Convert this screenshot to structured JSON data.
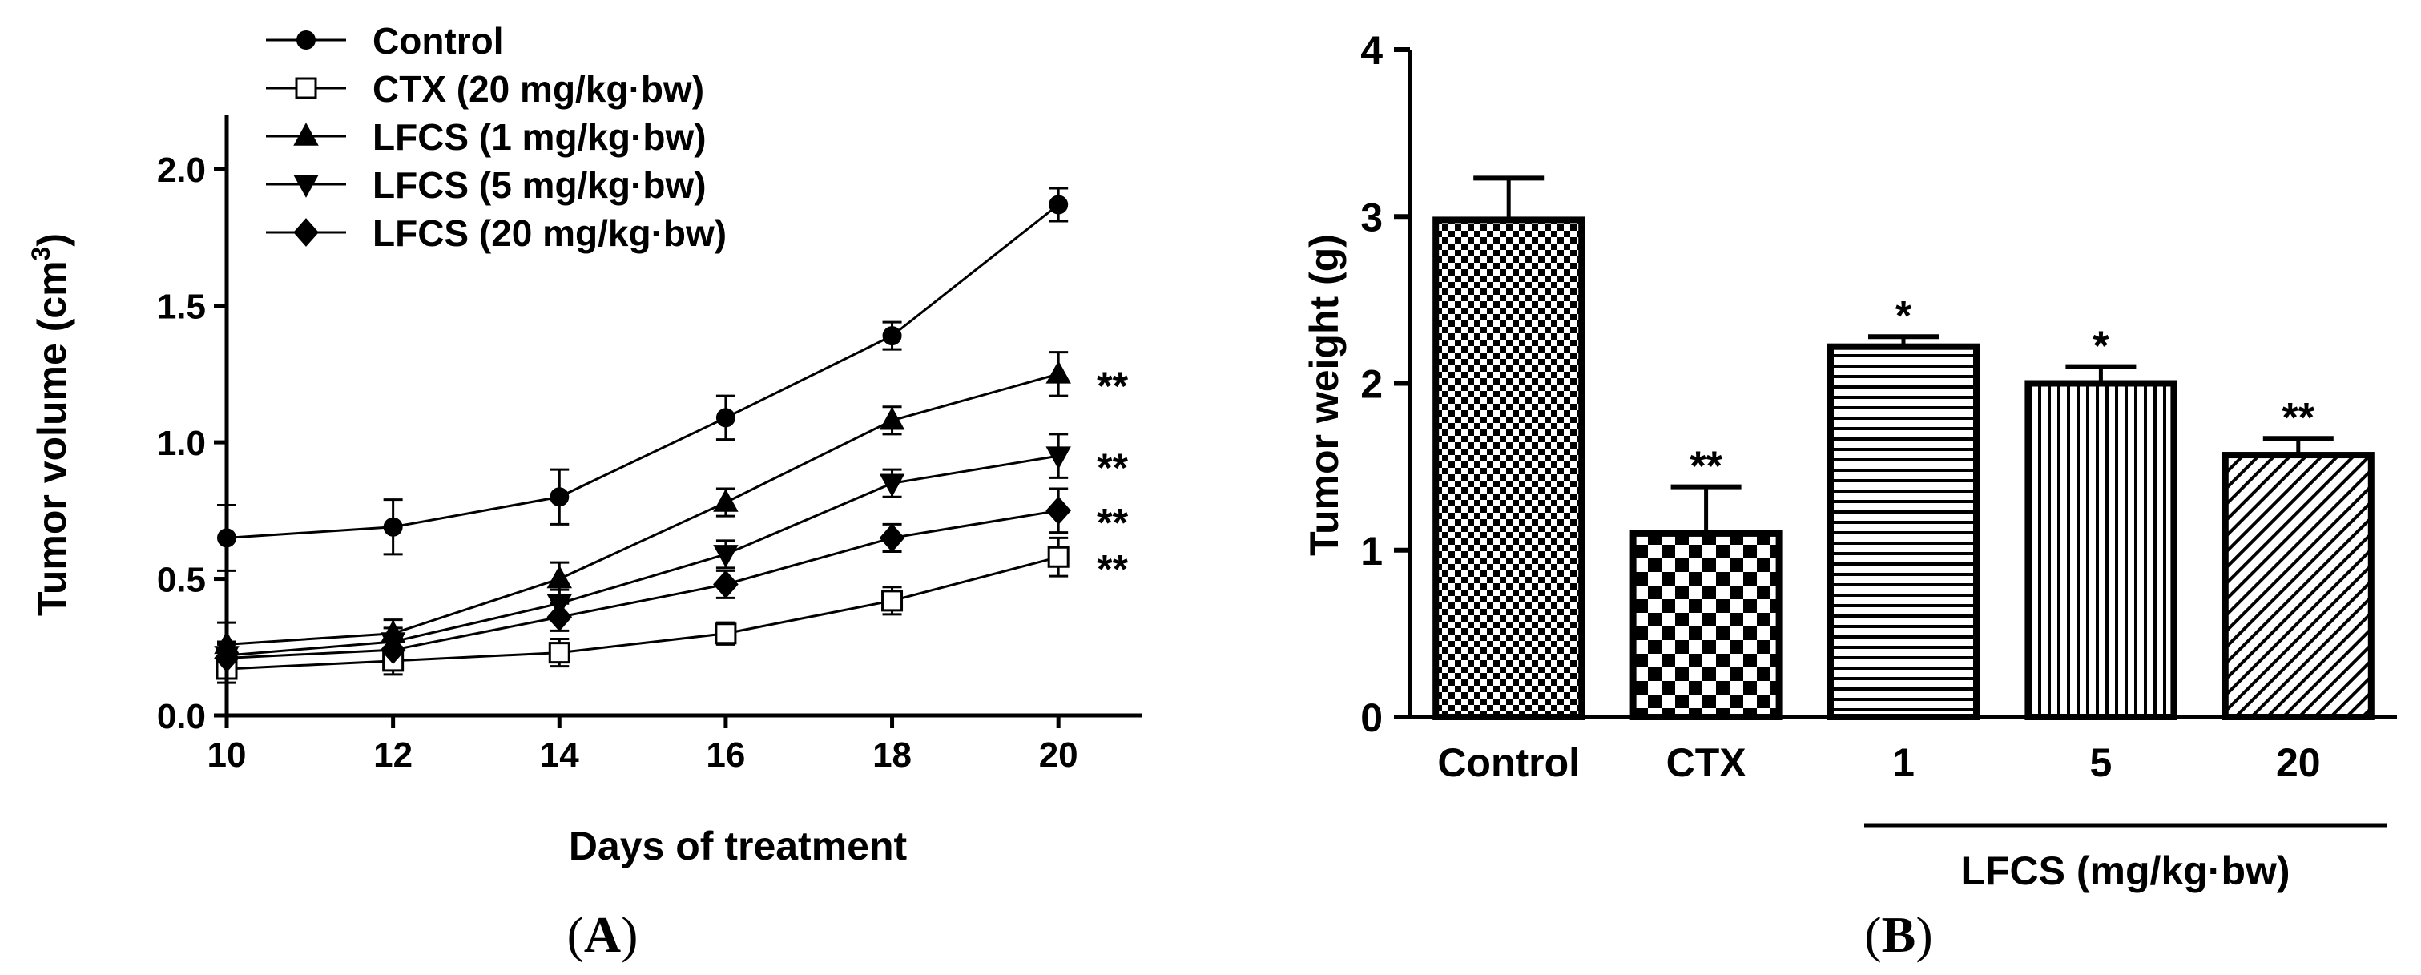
{
  "chart_data": [
    {
      "type": "line",
      "panel_label": "A",
      "xlabel": "Days of treatment",
      "ylabel_main": "Tumor volume (cm",
      "ylabel_sup": "3",
      "ylabel_close": ")",
      "x": [
        10,
        12,
        14,
        16,
        18,
        20
      ],
      "xticks": [
        "10",
        "12",
        "14",
        "16",
        "18",
        "20"
      ],
      "xlim": [
        10,
        21
      ],
      "yticks": [
        "0.0",
        "0.5",
        "1.0",
        "1.5",
        "2.0"
      ],
      "ylim": [
        0,
        2.2
      ],
      "series": [
        {
          "name": "Control",
          "marker": "circle",
          "values": [
            0.65,
            0.69,
            0.8,
            1.09,
            1.39,
            1.87
          ],
          "errors": [
            0.12,
            0.1,
            0.1,
            0.08,
            0.05,
            0.06
          ],
          "annotation": ""
        },
        {
          "name": "CTX (20 mg/kg·bw)",
          "marker": "open-square",
          "values": [
            0.17,
            0.2,
            0.23,
            0.3,
            0.42,
            0.58
          ],
          "errors": [
            0.05,
            0.05,
            0.05,
            0.04,
            0.05,
            0.07
          ],
          "annotation": "**"
        },
        {
          "name": "LFCS (1 mg/kg·bw)",
          "marker": "triangle-up",
          "values": [
            0.26,
            0.3,
            0.5,
            0.78,
            1.08,
            1.25
          ],
          "errors": [
            0.08,
            0.05,
            0.06,
            0.05,
            0.05,
            0.08
          ],
          "annotation": "**"
        },
        {
          "name": "LFCS (5 mg/kg·bw)",
          "marker": "triangle-down",
          "values": [
            0.22,
            0.27,
            0.41,
            0.59,
            0.85,
            0.95
          ],
          "errors": [
            0.05,
            0.05,
            0.05,
            0.05,
            0.05,
            0.08
          ],
          "annotation": "**"
        },
        {
          "name": "LFCS (20 mg/kg·bw)",
          "marker": "diamond",
          "values": [
            0.21,
            0.24,
            0.36,
            0.48,
            0.65,
            0.75
          ],
          "errors": [
            0.05,
            0.05,
            0.05,
            0.05,
            0.05,
            0.08
          ],
          "annotation": "**"
        }
      ]
    },
    {
      "type": "bar",
      "panel_label": "B",
      "ylabel": "Tumor weight (g)",
      "categories": [
        "Control",
        "CTX",
        "1",
        "5",
        "20"
      ],
      "values": [
        2.98,
        1.1,
        2.22,
        2.0,
        1.57
      ],
      "errors": [
        0.25,
        0.28,
        0.06,
        0.1,
        0.1
      ],
      "patterns": [
        "fine-check",
        "checker",
        "horizontal",
        "vertical",
        "diagonal"
      ],
      "annotations": [
        "",
        "**",
        "*",
        "*",
        "**"
      ],
      "yticks": [
        "0",
        "1",
        "2",
        "3",
        "4"
      ],
      "ylim": [
        0,
        4
      ],
      "group_label": "LFCS (mg/kg·bw)",
      "group_categories": [
        "1",
        "5",
        "20"
      ]
    }
  ]
}
